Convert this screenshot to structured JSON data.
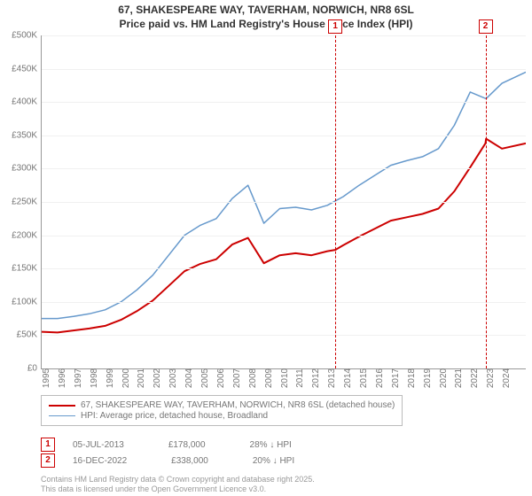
{
  "title_line1": "67, SHAKESPEARE WAY, TAVERHAM, NORWICH, NR8 6SL",
  "title_line2": "Price paid vs. HM Land Registry's House Price Index (HPI)",
  "chart": {
    "type": "line",
    "background_color": "#ffffff",
    "grid_color": "#f0f0f0",
    "axis_color": "#999999",
    "label_color": "#767676",
    "label_fontsize": 10,
    "xlim": [
      1995,
      2025.5
    ],
    "ylim": [
      0,
      500
    ],
    "ytick_step": 50,
    "y_labels": [
      "£0",
      "£50K",
      "£100K",
      "£150K",
      "£200K",
      "£250K",
      "£300K",
      "£350K",
      "£400K",
      "£450K",
      "£500K"
    ],
    "x_labels": [
      "1995",
      "1996",
      "1997",
      "1998",
      "1999",
      "2000",
      "2001",
      "2002",
      "2003",
      "2004",
      "2005",
      "2006",
      "2007",
      "2008",
      "2009",
      "2010",
      "2011",
      "2012",
      "2013",
      "2014",
      "2015",
      "2016",
      "2017",
      "2018",
      "2019",
      "2020",
      "2021",
      "2022",
      "2023",
      "2024"
    ],
    "series": [
      {
        "name": "HPI: Average price, detached house, Broadland",
        "color": "#6699cc",
        "width": 1.5,
        "points": [
          [
            1995,
            75
          ],
          [
            1996,
            75
          ],
          [
            1997,
            78
          ],
          [
            1998,
            82
          ],
          [
            1999,
            88
          ],
          [
            2000,
            100
          ],
          [
            2001,
            118
          ],
          [
            2002,
            140
          ],
          [
            2003,
            170
          ],
          [
            2004,
            200
          ],
          [
            2005,
            215
          ],
          [
            2006,
            225
          ],
          [
            2007,
            255
          ],
          [
            2008,
            275
          ],
          [
            2009,
            218
          ],
          [
            2010,
            240
          ],
          [
            2011,
            242
          ],
          [
            2012,
            238
          ],
          [
            2013,
            245
          ],
          [
            2014,
            258
          ],
          [
            2015,
            275
          ],
          [
            2016,
            290
          ],
          [
            2017,
            305
          ],
          [
            2018,
            312
          ],
          [
            2019,
            318
          ],
          [
            2020,
            330
          ],
          [
            2021,
            365
          ],
          [
            2022,
            415
          ],
          [
            2023,
            405
          ],
          [
            2024,
            428
          ],
          [
            2025.5,
            445
          ]
        ]
      },
      {
        "name": "67, SHAKESPEARE WAY, TAVERHAM, NORWICH, NR8 6SL (detached house)",
        "color": "#cc0000",
        "width": 2,
        "points": [
          [
            1995,
            55
          ],
          [
            1996,
            54
          ],
          [
            1997,
            57
          ],
          [
            1998,
            60
          ],
          [
            1999,
            64
          ],
          [
            2000,
            73
          ],
          [
            2001,
            86
          ],
          [
            2002,
            102
          ],
          [
            2003,
            124
          ],
          [
            2004,
            146
          ],
          [
            2005,
            157
          ],
          [
            2006,
            164
          ],
          [
            2007,
            186
          ],
          [
            2008,
            196
          ],
          [
            2009,
            158
          ],
          [
            2010,
            170
          ],
          [
            2011,
            173
          ],
          [
            2012,
            170
          ],
          [
            2013,
            176
          ],
          [
            2013.5,
            178
          ],
          [
            2014,
            185
          ],
          [
            2015,
            198
          ],
          [
            2016,
            210
          ],
          [
            2017,
            222
          ],
          [
            2018,
            227
          ],
          [
            2019,
            232
          ],
          [
            2020,
            240
          ],
          [
            2021,
            266
          ],
          [
            2022,
            302
          ],
          [
            2022.96,
            338
          ],
          [
            2023,
            345
          ],
          [
            2024,
            330
          ],
          [
            2025.5,
            338
          ]
        ]
      }
    ],
    "markers": [
      {
        "id": "1",
        "x": 2013.5
      },
      {
        "id": "2",
        "x": 2022.96
      }
    ]
  },
  "legend": {
    "items": [
      {
        "color": "#cc0000",
        "width": 2,
        "label": "67, SHAKESPEARE WAY, TAVERHAM, NORWICH, NR8 6SL (detached house)"
      },
      {
        "color": "#6699cc",
        "width": 1.5,
        "label": "HPI: Average price, detached house, Broadland"
      }
    ]
  },
  "sales": [
    {
      "id": "1",
      "date": "05-JUL-2013",
      "price": "£178,000",
      "diff": "28% ↓ HPI"
    },
    {
      "id": "2",
      "date": "16-DEC-2022",
      "price": "£338,000",
      "diff": "20% ↓ HPI"
    }
  ],
  "footer_line1": "Contains HM Land Registry data © Crown copyright and database right 2025.",
  "footer_line2": "This data is licensed under the Open Government Licence v3.0."
}
